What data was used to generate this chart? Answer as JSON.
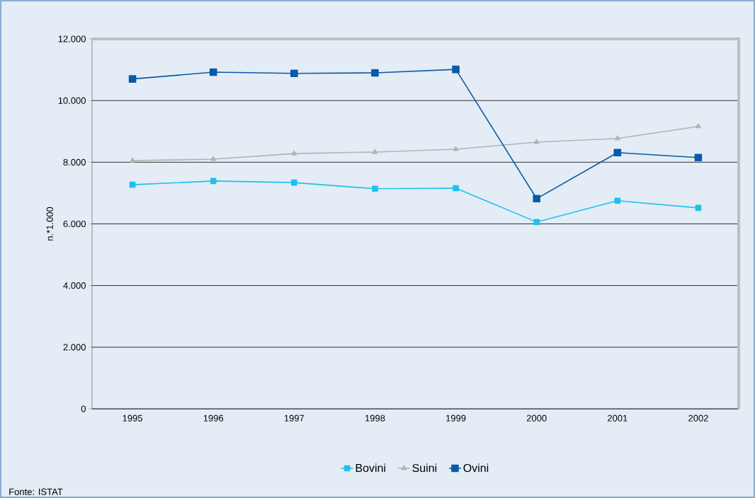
{
  "chart_data": {
    "type": "line",
    "ylabel": "n.*1.000",
    "categories": [
      "1995",
      "1996",
      "1997",
      "1998",
      "1999",
      "2000",
      "2001",
      "2002"
    ],
    "series": [
      {
        "name": "Bovini",
        "color": "#1ec0ee",
        "marker": "square",
        "values": [
          7270,
          7390,
          7340,
          7140,
          7160,
          6060,
          6750,
          6520
        ]
      },
      {
        "name": "Suini",
        "color": "#b3b3b3",
        "marker": "triangle",
        "values": [
          8050,
          8100,
          8280,
          8330,
          8420,
          8650,
          8770,
          9160
        ]
      },
      {
        "name": "Ovini",
        "color": "#0a5aa8",
        "marker": "square",
        "values": [
          10700,
          10920,
          10880,
          10900,
          11010,
          6820,
          8310,
          8150
        ]
      }
    ],
    "ylim": [
      0,
      12000
    ],
    "yticks": [
      {
        "value": 0,
        "label": "0"
      },
      {
        "value": 2000,
        "label": "2.000"
      },
      {
        "value": 4000,
        "label": "4.000"
      },
      {
        "value": 6000,
        "label": "6.000"
      },
      {
        "value": 8000,
        "label": "8.000"
      },
      {
        "value": 10000,
        "label": "10.000"
      },
      {
        "value": 12000,
        "label": "12.000"
      }
    ],
    "grid": "y",
    "legend": "bottom",
    "annotations": [
      "Fonte: ISTAT"
    ]
  }
}
